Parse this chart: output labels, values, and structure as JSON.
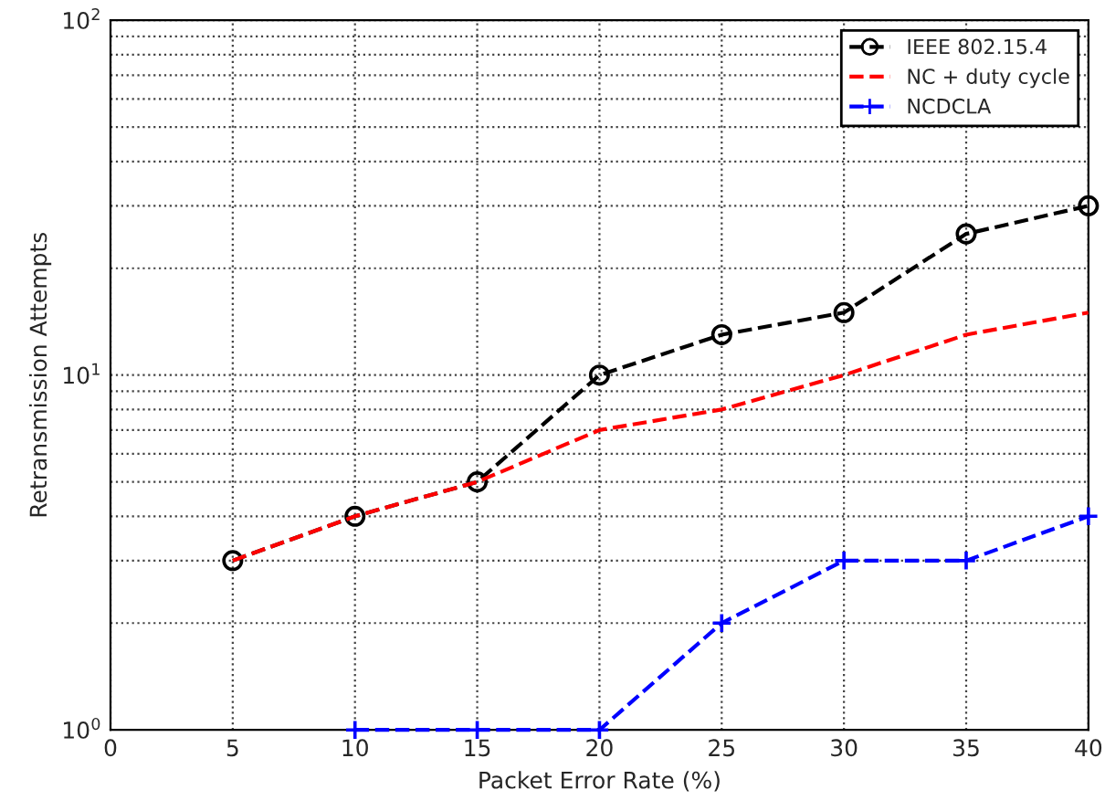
{
  "chart_data": {
    "type": "line",
    "xlabel": "Packet Error Rate (%)",
    "ylabel": "Retransmission Attempts",
    "log": "y",
    "grid": true,
    "legend": "top right",
    "line_style": "dashed",
    "xlim": [
      0,
      40
    ],
    "xticks": [
      0,
      5,
      10,
      15,
      20,
      25,
      30,
      35,
      40
    ],
    "ylim": [
      1,
      100
    ],
    "yticks": [
      {
        "value": 1,
        "label": "10$^{0}$"
      },
      {
        "value": 10,
        "label": "10$^{1}$"
      },
      {
        "value": 100,
        "label": "10$^{2}$"
      }
    ],
    "series": [
      {
        "name": "IEEE 802.15.4",
        "color": "#000000",
        "marker": "circle",
        "x": [
          5,
          10,
          15,
          20,
          25,
          30,
          35,
          40
        ],
        "values": [
          3,
          4,
          5,
          10,
          13,
          15,
          25,
          30
        ]
      },
      {
        "name": "NC + duty cycle",
        "color": "#ff0000",
        "marker": "none",
        "x": [
          5,
          10,
          15,
          20,
          25,
          30,
          35,
          40
        ],
        "values": [
          3,
          4,
          5,
          7,
          8,
          10,
          13,
          15
        ]
      },
      {
        "name": "NCDCLA",
        "color": "#0000ff",
        "marker": "cross",
        "x": [
          10,
          15,
          20,
          25,
          30,
          35,
          40
        ],
        "values": [
          1,
          1,
          1,
          2,
          3,
          3,
          4
        ]
      }
    ]
  }
}
